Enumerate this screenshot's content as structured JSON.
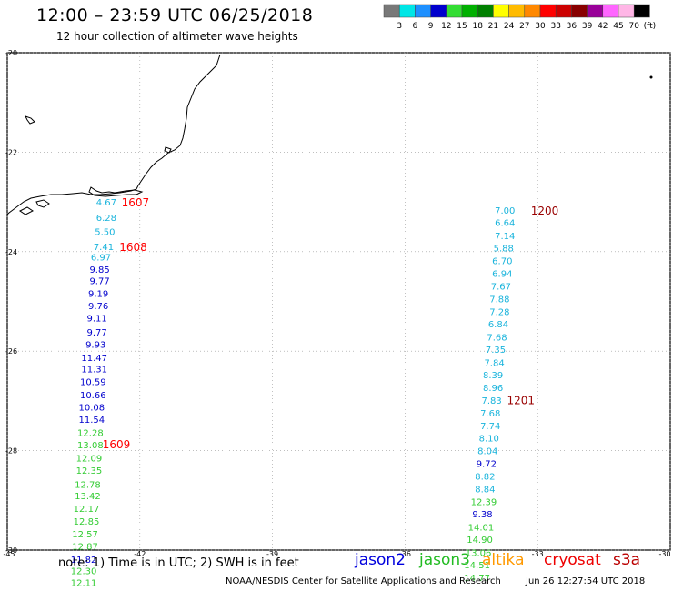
{
  "header": {
    "title": "12:00 – 23:59 UTC 06/25/2018",
    "subtitle": "12 hour collection of altimeter wave heights"
  },
  "color_scale": {
    "labels": [
      "3",
      "6",
      "9",
      "12",
      "15",
      "18",
      "21",
      "24",
      "27",
      "30",
      "33",
      "36",
      "39",
      "42",
      "45",
      "70",
      "(ft)"
    ],
    "colors": [
      "#787878",
      "#00e6e6",
      "#1e90ff",
      "#0000cd",
      "#33dd33",
      "#00b000",
      "#008000",
      "#ffff00",
      "#ffbb00",
      "#ff8800",
      "#ff0000",
      "#cc0000",
      "#880000",
      "#990099",
      "#ff66ff",
      "#ffb6e6",
      "#000000"
    ]
  },
  "chart_data": {
    "type": "scatter",
    "xlim": [
      -45,
      -30
    ],
    "ylim": [
      -30,
      -20
    ],
    "x_ticks": [
      "-45",
      "-42",
      "-39",
      "-36",
      "-33",
      "-30"
    ],
    "y_ticks": [
      "-20",
      "-22",
      "-24",
      "-26",
      "-28",
      "-30"
    ],
    "colors": {
      "jason2": "#0000cd",
      "jason3": "#33cc33",
      "altika": "#ff8800",
      "cryosat": "#ff0000",
      "s3a": "#cc0000",
      "cyan": "#1ab4dc",
      "pass_red": "#ff0000",
      "pass_dark": "#990000"
    },
    "observations": [
      {
        "lon": -42.76,
        "lat": -23.02,
        "v": "4.67",
        "c": "cyan"
      },
      {
        "lon": -42.76,
        "lat": -23.33,
        "v": "6.28",
        "c": "cyan"
      },
      {
        "lon": -42.79,
        "lat": -23.61,
        "v": "5.50",
        "c": "cyan"
      },
      {
        "lon": -42.82,
        "lat": -23.91,
        "v": "7.41",
        "c": "cyan"
      },
      {
        "lon": -42.88,
        "lat": -24.12,
        "v": "6.97",
        "c": "cyan"
      },
      {
        "lon": -42.91,
        "lat": -24.37,
        "v": "9.85",
        "c": "jason2"
      },
      {
        "lon": -42.91,
        "lat": -24.6,
        "v": "9.77",
        "c": "jason2"
      },
      {
        "lon": -42.94,
        "lat": -24.85,
        "v": "9.19",
        "c": "jason2"
      },
      {
        "lon": -42.94,
        "lat": -25.1,
        "v": "9.76",
        "c": "jason2"
      },
      {
        "lon": -42.97,
        "lat": -25.35,
        "v": "9.11",
        "c": "jason2"
      },
      {
        "lon": -42.97,
        "lat": -25.63,
        "v": "9.77",
        "c": "jason2"
      },
      {
        "lon": -43.0,
        "lat": -25.88,
        "v": "9.93",
        "c": "jason2"
      },
      {
        "lon": -43.03,
        "lat": -26.14,
        "v": "11.47",
        "c": "jason2"
      },
      {
        "lon": -43.03,
        "lat": -26.37,
        "v": "11.31",
        "c": "jason2"
      },
      {
        "lon": -43.06,
        "lat": -26.63,
        "v": "10.59",
        "c": "jason2"
      },
      {
        "lon": -43.06,
        "lat": -26.89,
        "v": "10.66",
        "c": "jason2"
      },
      {
        "lon": -43.09,
        "lat": -27.14,
        "v": "10.08",
        "c": "jason2"
      },
      {
        "lon": -43.09,
        "lat": -27.39,
        "v": "11.54",
        "c": "jason2"
      },
      {
        "lon": -43.12,
        "lat": -27.65,
        "v": "12.28",
        "c": "jason3"
      },
      {
        "lon": -43.12,
        "lat": -27.9,
        "v": "13.08",
        "c": "jason3"
      },
      {
        "lon": -43.15,
        "lat": -28.16,
        "v": "12.09",
        "c": "jason3"
      },
      {
        "lon": -43.15,
        "lat": -28.41,
        "v": "12.35",
        "c": "jason3"
      },
      {
        "lon": -43.18,
        "lat": -28.69,
        "v": "12.78",
        "c": "jason3"
      },
      {
        "lon": -43.18,
        "lat": -28.92,
        "v": "13.42",
        "c": "jason3"
      },
      {
        "lon": -43.21,
        "lat": -29.18,
        "v": "12.17",
        "c": "jason3"
      },
      {
        "lon": -43.21,
        "lat": -29.43,
        "v": "12.85",
        "c": "jason3"
      },
      {
        "lon": -43.24,
        "lat": -29.69,
        "v": "12.57",
        "c": "jason3"
      },
      {
        "lon": -43.24,
        "lat": -29.94,
        "v": "12.87",
        "c": "jason3"
      },
      {
        "lon": -43.27,
        "lat": -30.2,
        "v": "11.82",
        "c": "jason2"
      },
      {
        "lon": -43.27,
        "lat": -30.43,
        "v": "12.30",
        "c": "jason3"
      },
      {
        "lon": -43.27,
        "lat": -30.67,
        "v": "12.11",
        "c": "jason3"
      },
      {
        "lon": -33.74,
        "lat": -23.18,
        "v": "7.00",
        "c": "cyan"
      },
      {
        "lon": -33.74,
        "lat": -23.43,
        "v": "6.64",
        "c": "cyan"
      },
      {
        "lon": -33.74,
        "lat": -23.69,
        "v": "7.14",
        "c": "cyan"
      },
      {
        "lon": -33.77,
        "lat": -23.94,
        "v": "5.88",
        "c": "cyan"
      },
      {
        "lon": -33.8,
        "lat": -24.2,
        "v": "6.70",
        "c": "cyan"
      },
      {
        "lon": -33.8,
        "lat": -24.45,
        "v": "6.94",
        "c": "cyan"
      },
      {
        "lon": -33.83,
        "lat": -24.71,
        "v": "7.67",
        "c": "cyan"
      },
      {
        "lon": -33.86,
        "lat": -24.96,
        "v": "7.88",
        "c": "cyan"
      },
      {
        "lon": -33.86,
        "lat": -25.22,
        "v": "7.28",
        "c": "cyan"
      },
      {
        "lon": -33.89,
        "lat": -25.47,
        "v": "6.84",
        "c": "cyan"
      },
      {
        "lon": -33.92,
        "lat": -25.73,
        "v": "7.68",
        "c": "cyan"
      },
      {
        "lon": -33.95,
        "lat": -25.98,
        "v": "7.35",
        "c": "cyan"
      },
      {
        "lon": -33.98,
        "lat": -26.24,
        "v": "7.84",
        "c": "cyan"
      },
      {
        "lon": -34.01,
        "lat": -26.49,
        "v": "8.39",
        "c": "cyan"
      },
      {
        "lon": -34.01,
        "lat": -26.75,
        "v": "8.96",
        "c": "cyan"
      },
      {
        "lon": -34.04,
        "lat": -27.0,
        "v": "7.83",
        "c": "cyan"
      },
      {
        "lon": -34.07,
        "lat": -27.26,
        "v": "7.68",
        "c": "cyan"
      },
      {
        "lon": -34.07,
        "lat": -27.51,
        "v": "7.74",
        "c": "cyan"
      },
      {
        "lon": -34.1,
        "lat": -27.76,
        "v": "8.10",
        "c": "cyan"
      },
      {
        "lon": -34.13,
        "lat": -28.02,
        "v": "8.04",
        "c": "cyan"
      },
      {
        "lon": -34.16,
        "lat": -28.27,
        "v": "9.72",
        "c": "jason2"
      },
      {
        "lon": -34.19,
        "lat": -28.53,
        "v": "8.82",
        "c": "cyan"
      },
      {
        "lon": -34.19,
        "lat": -28.78,
        "v": "8.84",
        "c": "cyan"
      },
      {
        "lon": -34.22,
        "lat": -29.04,
        "v": "12.39",
        "c": "jason3"
      },
      {
        "lon": -34.25,
        "lat": -29.29,
        "v": "9.38",
        "c": "jason2"
      },
      {
        "lon": -34.28,
        "lat": -29.55,
        "v": "14.01",
        "c": "jason3"
      },
      {
        "lon": -34.31,
        "lat": -29.8,
        "v": "14.90",
        "c": "jason3"
      },
      {
        "lon": -34.34,
        "lat": -30.06,
        "v": "13.06",
        "c": "jason3"
      },
      {
        "lon": -34.37,
        "lat": -30.31,
        "v": "14.51",
        "c": "jason3"
      },
      {
        "lon": -34.37,
        "lat": -30.57,
        "v": "14.77",
        "c": "jason3"
      }
    ],
    "pass_times": [
      {
        "lon": -42.1,
        "lat": -23.02,
        "v": "1607",
        "c": "pass_red"
      },
      {
        "lon": -42.15,
        "lat": -23.91,
        "v": "1608",
        "c": "pass_red"
      },
      {
        "lon": -42.53,
        "lat": -27.88,
        "v": "1609",
        "c": "pass_red"
      },
      {
        "lon": -32.84,
        "lat": -23.18,
        "v": "1200",
        "c": "pass_dark"
      },
      {
        "lon": -33.38,
        "lat": -26.99,
        "v": "1201",
        "c": "pass_dark"
      }
    ]
  },
  "footer": {
    "note": "note:  1) Time is in UTC;  2) SWH is in feet",
    "legend": [
      {
        "label": "jason2",
        "color": "#0000dd"
      },
      {
        "label": "jason3",
        "color": "#22bb22"
      },
      {
        "label": "altika",
        "color": "#ff9900"
      },
      {
        "label": "cryosat",
        "color": "#ee0000"
      },
      {
        "label": "s3a",
        "color": "#bb0000"
      }
    ],
    "credit": "NOAA/NESDIS Center for Satellite Applications and Research",
    "timestamp": "Jun 26 12:27:54 UTC 2018"
  }
}
